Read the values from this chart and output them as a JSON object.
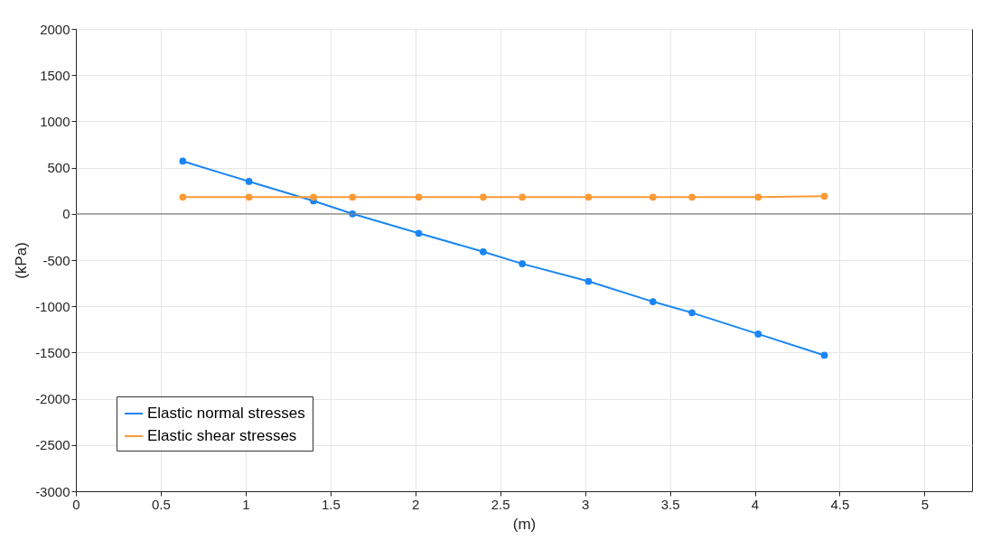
{
  "chart_data": {
    "type": "line",
    "xlabel": "(m)",
    "ylabel": "(kPa)",
    "x": [
      0.63,
      1.02,
      1.4,
      1.63,
      2.02,
      2.4,
      2.63,
      3.02,
      3.4,
      3.63,
      4.02,
      4.41
    ],
    "series": [
      {
        "name": "Elastic normal stresses",
        "color": "#1a86f5",
        "values": [
          570,
          350,
          140,
          0,
          -210,
          -410,
          -540,
          -730,
          -950,
          -1070,
          -1300,
          -1530
        ]
      },
      {
        "name": "Elastic shear stresses",
        "color": "#fb9a36",
        "values": [
          180,
          180,
          180,
          180,
          180,
          180,
          180,
          180,
          180,
          180,
          180,
          190
        ]
      }
    ],
    "xlim": [
      0,
      5.28
    ],
    "xticks": [
      0,
      0.5,
      1,
      1.5,
      2,
      2.5,
      3,
      3.5,
      4,
      4.5,
      5
    ],
    "ylim": [
      -3000,
      2000
    ],
    "yticks": [
      -3000,
      -2500,
      -2000,
      -1500,
      -1000,
      -500,
      0,
      500,
      1000,
      1500,
      2000
    ],
    "ref_lines": [
      {
        "axis": "y",
        "value": 0,
        "color": "#808080"
      }
    ],
    "grid": true,
    "legend": "bottom left",
    "marker": "circle",
    "line_style": "solid"
  }
}
